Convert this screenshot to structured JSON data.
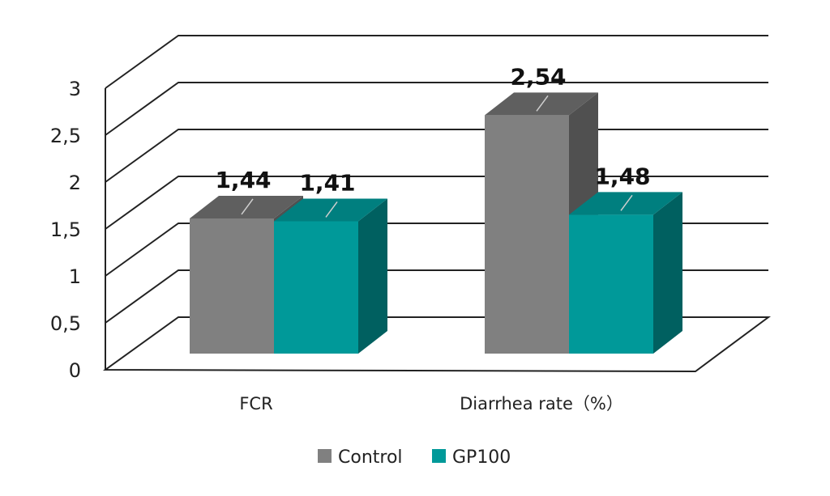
{
  "chart_data": {
    "type": "bar",
    "categories": [
      "FCR",
      "Diarrhea rate（%）"
    ],
    "series": [
      {
        "name": "Control",
        "values": [
          1.44,
          2.54
        ],
        "labels": [
          "1,44",
          "2,54"
        ],
        "color": "#808080",
        "top_color": "#5f5f5f",
        "side_color": "#505050"
      },
      {
        "name": "GP100",
        "values": [
          1.41,
          1.48
        ],
        "labels": [
          "1,41",
          "1,48"
        ],
        "color": "#009999",
        "top_color": "#007f7f",
        "side_color": "#006060"
      }
    ],
    "y_ticks": [
      "0",
      "0,5",
      "1",
      "1,5",
      "2",
      "2,5",
      "3"
    ],
    "ylim": [
      0,
      3
    ],
    "grid": true,
    "legend_position": "bottom-center",
    "style": "3d-clustered-column"
  }
}
